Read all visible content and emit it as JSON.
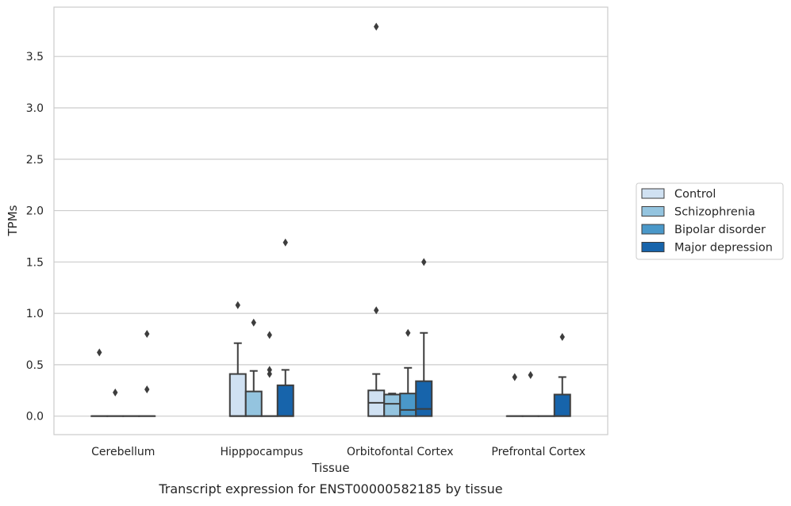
{
  "chart_data": {
    "type": "box",
    "title": "Transcript expression for ENST00000582185 by tissue",
    "xlabel": "Tissue",
    "ylabel": "TPMs",
    "ylim": [
      -0.18,
      3.98
    ],
    "yticks": [
      "0.0",
      "0.5",
      "1.0",
      "1.5",
      "2.0",
      "2.5",
      "3.0",
      "3.5"
    ],
    "ytick_values": [
      0.0,
      0.5,
      1.0,
      1.5,
      2.0,
      2.5,
      3.0,
      3.5
    ],
    "categories": [
      "Cerebellum",
      "Hipppocampus",
      "Orbitofontal Cortex",
      "Prefrontal Cortex"
    ],
    "grid": "horizontal",
    "legend_position": "right",
    "series": [
      {
        "name": "Control",
        "color": "#d0e1f2",
        "boxes": [
          {
            "q1": 0,
            "median": 0,
            "q3": 0,
            "whisker_low": 0,
            "whisker_high": 0,
            "outliers": [
              0.62
            ]
          },
          {
            "q1": 0,
            "median": 0,
            "q3": 0.41,
            "whisker_low": 0,
            "whisker_high": 0.71,
            "outliers": [
              1.08
            ]
          },
          {
            "q1": 0,
            "median": 0.13,
            "q3": 0.25,
            "whisker_low": 0,
            "whisker_high": 0.41,
            "outliers": [
              1.03,
              3.79
            ]
          },
          {
            "q1": 0,
            "median": 0,
            "q3": 0,
            "whisker_low": 0,
            "whisker_high": 0,
            "outliers": [
              0.38
            ]
          }
        ]
      },
      {
        "name": "Schizophrenia",
        "color": "#94c4df",
        "boxes": [
          {
            "q1": 0,
            "median": 0,
            "q3": 0,
            "whisker_low": 0,
            "whisker_high": 0,
            "outliers": [
              0.23
            ]
          },
          {
            "q1": 0,
            "median": 0,
            "q3": 0.24,
            "whisker_low": 0,
            "whisker_high": 0.44,
            "outliers": [
              0.91
            ]
          },
          {
            "q1": 0,
            "median": 0.12,
            "q3": 0.21,
            "whisker_low": 0,
            "whisker_high": 0.22,
            "outliers": []
          },
          {
            "q1": 0,
            "median": 0,
            "q3": 0,
            "whisker_low": 0,
            "whisker_high": 0,
            "outliers": [
              0.4
            ]
          }
        ]
      },
      {
        "name": "Bipolar disorder",
        "color": "#4a98c9",
        "boxes": [
          {
            "q1": 0,
            "median": 0,
            "q3": 0,
            "whisker_low": 0,
            "whisker_high": 0,
            "outliers": []
          },
          {
            "q1": 0,
            "median": 0,
            "q3": 0,
            "whisker_low": 0,
            "whisker_high": 0,
            "outliers": [
              0.41,
              0.45,
              0.79
            ]
          },
          {
            "q1": 0,
            "median": 0.06,
            "q3": 0.22,
            "whisker_low": 0,
            "whisker_high": 0.47,
            "outliers": [
              0.81
            ]
          },
          {
            "q1": 0,
            "median": 0,
            "q3": 0,
            "whisker_low": 0,
            "whisker_high": 0,
            "outliers": []
          }
        ]
      },
      {
        "name": "Major depression",
        "color": "#1764ab",
        "boxes": [
          {
            "q1": 0,
            "median": 0,
            "q3": 0,
            "whisker_low": 0,
            "whisker_high": 0,
            "outliers": [
              0.26,
              0.8
            ]
          },
          {
            "q1": 0,
            "median": 0,
            "q3": 0.3,
            "whisker_low": 0,
            "whisker_high": 0.45,
            "outliers": [
              1.69
            ]
          },
          {
            "q1": 0,
            "median": 0.07,
            "q3": 0.34,
            "whisker_low": 0,
            "whisker_high": 0.81,
            "outliers": [
              1.5
            ]
          },
          {
            "q1": 0,
            "median": 0,
            "q3": 0.21,
            "whisker_low": 0,
            "whisker_high": 0.38,
            "outliers": [
              0.77
            ]
          }
        ]
      }
    ]
  }
}
